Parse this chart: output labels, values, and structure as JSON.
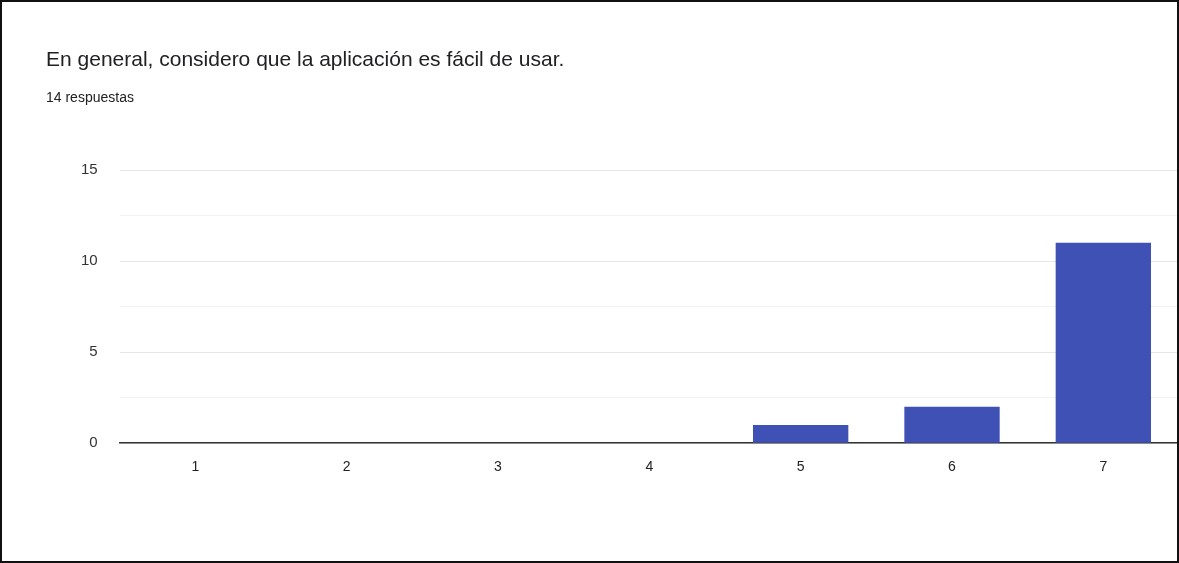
{
  "chart_data": {
    "type": "bar",
    "title": "En general, considero que la aplicación es fácil de usar.",
    "subtitle": "14 respuestas",
    "categories": [
      "1",
      "2",
      "3",
      "4",
      "5",
      "6",
      "7"
    ],
    "series": [
      {
        "color": "#3f51b5",
        "values": [
          0,
          0,
          0,
          0,
          1,
          2,
          11
        ]
      }
    ],
    "ylim": [
      0,
      15
    ],
    "yticks": [
      0,
      {
        "value": 2.5,
        "label": null
      },
      5,
      {
        "value": 7.5,
        "label": null
      },
      10,
      {
        "value": 12.5,
        "label": null
      },
      15
    ],
    "grid": "y",
    "legend": false
  }
}
